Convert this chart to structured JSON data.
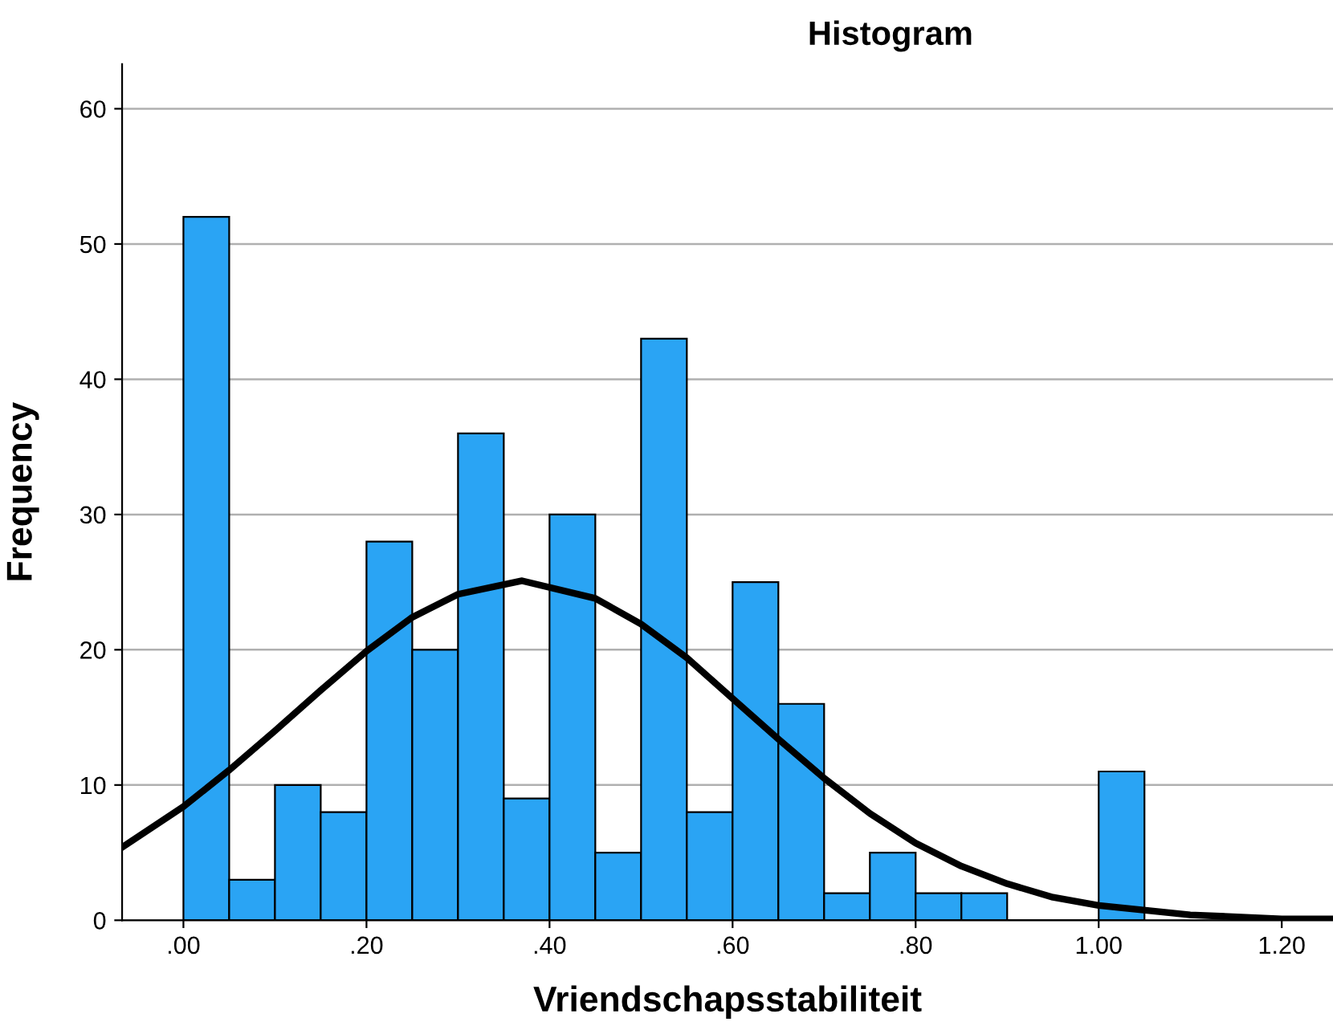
{
  "chart_data": {
    "type": "histogram",
    "title": "Histogram",
    "xlabel": "Vriendschapsstabiliteit",
    "ylabel": "Frequency",
    "series": [
      {
        "color": "#2aa4f4",
        "bins": [
          0,
          0.05,
          0.1,
          0.15,
          0.2,
          0.25,
          0.3,
          0.35,
          0.4,
          0.45,
          0.5,
          0.55,
          0.6,
          0.65,
          0.7,
          0.75,
          0.8,
          0.85,
          0.9,
          0.95,
          1.0,
          1.05
        ],
        "values": [
          52,
          3,
          10,
          8,
          28,
          20,
          36,
          9,
          30,
          5,
          43,
          8,
          25,
          16,
          2,
          5,
          2,
          2,
          0,
          0,
          11
        ]
      },
      {
        "type": "line",
        "color": "#000000",
        "x": [
          -0.067,
          0,
          0.05,
          0.1,
          0.15,
          0.2,
          0.25,
          0.3,
          0.37,
          0.45,
          0.5,
          0.55,
          0.6,
          0.65,
          0.7,
          0.75,
          0.8,
          0.85,
          0.9,
          0.95,
          1.0,
          1.1,
          1.2,
          1.256
        ],
        "values": [
          5.4,
          8.4,
          11.1,
          14.0,
          17.0,
          19.9,
          22.4,
          24.1,
          25.1,
          23.8,
          21.9,
          19.4,
          16.4,
          13.4,
          10.5,
          7.9,
          5.7,
          4.0,
          2.7,
          1.7,
          1.1,
          0.4,
          0.1,
          0.1
        ]
      }
    ],
    "xlim": [
      -0.067,
      1.256
    ],
    "ylim": [
      0,
      63.3
    ],
    "xticks": [
      {
        "value": 0,
        "label": ".00"
      },
      {
        "value": 0.2,
        "label": ".20"
      },
      {
        "value": 0.4,
        "label": ".40"
      },
      {
        "value": 0.6,
        "label": ".60"
      },
      {
        "value": 0.8,
        "label": ".80"
      },
      {
        "value": 1.0,
        "label": "1.00"
      },
      {
        "value": 1.2,
        "label": "1.20"
      }
    ],
    "yticks": [
      0,
      10,
      20,
      30,
      40,
      50,
      60
    ],
    "grid": "y"
  }
}
